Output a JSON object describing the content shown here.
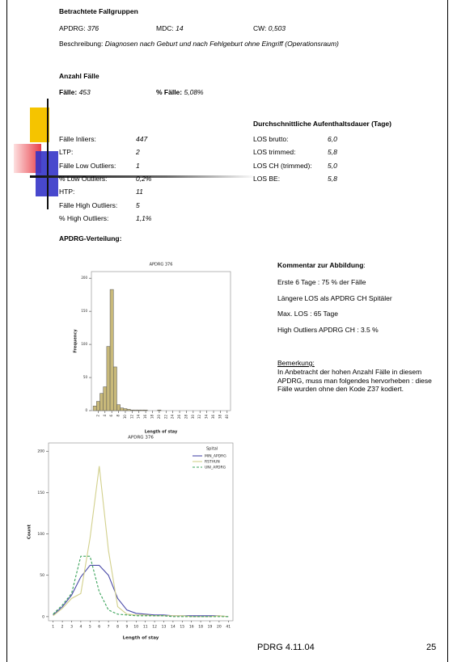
{
  "case_group": {
    "title": "Betrachtete Fallgruppen",
    "apdrg": {
      "label": "APDRG:",
      "value": "376"
    },
    "mdc": {
      "label": "MDC:",
      "value": "14"
    },
    "cw": {
      "label": "CW:",
      "value": "0,503"
    },
    "description": {
      "label": "Beschreibung:",
      "value": "Diagnosen nach Geburt und nach Fehlgeburt ohne Eingriff (Operationsraum)"
    }
  },
  "case_count": {
    "title": "Anzahl Fälle",
    "cases": {
      "label": "Fälle:",
      "value": "453"
    },
    "percent": {
      "label": "% Fälle:",
      "value": "5,08%"
    }
  },
  "outliers": [
    {
      "label": "Fälle Inliers:",
      "value": "447"
    },
    {
      "label": "LTP:",
      "value": "2"
    },
    {
      "label": "Fälle Low Outliers:",
      "value": "1"
    },
    {
      "label": "% Low Outliers:",
      "value": "0,2%"
    },
    {
      "label": "HTP:",
      "value": "11"
    },
    {
      "label": "Fälle High Outliers:",
      "value": "5"
    },
    {
      "label": "% High Outliers:",
      "value": "1,1%"
    }
  ],
  "los": {
    "title": "Durchschnittliche Aufenthaltsdauer (Tage)",
    "rows": [
      {
        "label": "LOS brutto:",
        "value": "6,0"
      },
      {
        "label": "LOS trimmed:",
        "value": "5,8"
      },
      {
        "label": "LOS CH (trimmed):",
        "value": "5,0"
      },
      {
        "label": "LOS BE:",
        "value": "5,8"
      }
    ]
  },
  "distribution_title": "APDRG-Verteilung:",
  "comment": {
    "title": "Kommentar zur Abbildung",
    "lines": [
      "Erste 6 Tage : 75 % der Fälle",
      "Längere LOS als APDRG CH Spitäler",
      "Max. LOS : 65 Tage",
      "High Outliers APDRG CH : 3.5 %"
    ]
  },
  "remark": {
    "title": "Bemerkung:",
    "text": "In Anbetracht der hohen Anzahl Fälle in diesem APDRG, muss man folgendes hervorheben : diese Fälle wurden ohne den Kode Z37 kodiert."
  },
  "footer": {
    "left": "PDRG 4.11.04",
    "page": "25"
  },
  "chart_data": [
    {
      "type": "histogram",
      "title": "APDRG 376",
      "x_label": "Length of stay",
      "y_label": "Frequency",
      "bins": [
        0.5,
        1.5,
        2.5,
        3.5,
        4.5,
        5.5,
        6.5,
        7.5,
        8.5,
        9.5,
        10.5,
        11.5,
        12.5,
        13.5,
        14.5,
        15.5,
        16.5,
        17.5,
        18.5,
        19.5,
        20.5,
        21.5,
        22.5,
        23.5,
        24.5,
        25.5,
        26.5,
        27.5,
        28.5,
        29.5,
        30.5,
        31.5,
        32.5,
        33.5,
        34.5,
        35.5,
        36.5,
        37.5,
        38.5,
        39.5,
        40.5
      ],
      "counts": [
        7,
        14,
        26,
        36,
        97,
        183,
        66,
        9,
        4,
        3,
        2,
        1,
        1,
        1,
        1,
        1,
        0,
        0,
        0,
        1,
        0,
        0,
        0,
        0,
        0,
        0,
        0,
        0,
        0,
        0,
        0,
        0,
        0,
        0,
        0,
        0,
        0,
        0,
        0,
        0
      ],
      "color": "#c8b97a",
      "xlim": [
        0,
        41
      ],
      "xticks": [
        2,
        4,
        6,
        8,
        10,
        12,
        14,
        16,
        18,
        20,
        22,
        24,
        26,
        28,
        30,
        32,
        34,
        36,
        38,
        40
      ],
      "ylim": [
        0,
        210
      ],
      "yticks": [
        0,
        50,
        100,
        150,
        200
      ]
    },
    {
      "type": "line",
      "title": "APDRG 376",
      "x_label": "Length of stay",
      "y_label": "Count",
      "legend_title": "Spital",
      "categories": [
        "1",
        "2",
        "3",
        "4",
        "5",
        "6",
        "7",
        "8",
        "9",
        "10",
        "11",
        "12",
        "13",
        "14",
        "15",
        "16",
        "18",
        "19",
        "20",
        "41"
      ],
      "series": [
        {
          "name": "MIN_APDRG",
          "color": "#4a4aa8",
          "dashed": false,
          "values": [
            2,
            12,
            26,
            48,
            62,
            62,
            50,
            22,
            8,
            4,
            3,
            2,
            2,
            1,
            1,
            1,
            1,
            1,
            1,
            0
          ]
        },
        {
          "name": "RSTHUN",
          "color": "#d2d08c",
          "dashed": false,
          "values": [
            1,
            10,
            22,
            28,
            95,
            182,
            80,
            12,
            3,
            2,
            2,
            1,
            1,
            1,
            1,
            0,
            0,
            0,
            1,
            0
          ]
        },
        {
          "name": "UNI_APDRG",
          "color": "#3aa35a",
          "dashed": true,
          "values": [
            3,
            14,
            28,
            73,
            73,
            30,
            8,
            3,
            2,
            1,
            1,
            1,
            1,
            0,
            0,
            0,
            0,
            0,
            0,
            0
          ]
        }
      ],
      "ylim": [
        -5,
        210
      ],
      "yticks": [
        0,
        50,
        100,
        150,
        200
      ]
    }
  ]
}
